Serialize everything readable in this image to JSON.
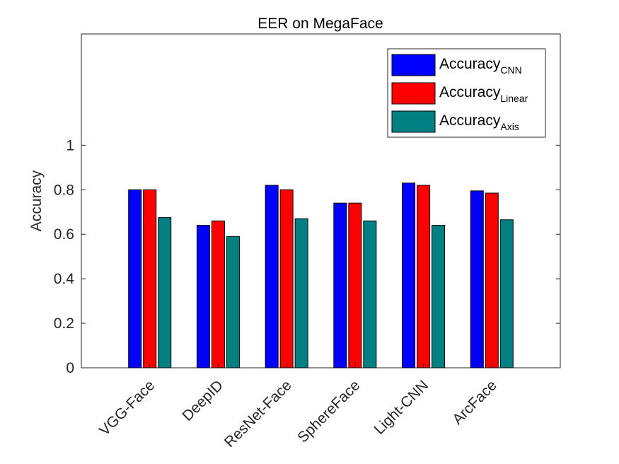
{
  "chart_data": {
    "type": "bar",
    "title": "EER on MegaFace",
    "ylabel": "Accuracy",
    "xlabel": "",
    "categories": [
      "VGG-Face",
      "DeepID",
      "ResNet-Face",
      "SphereFace",
      "Light-CNN",
      "ArcFace"
    ],
    "series": [
      {
        "name": "Accuracy",
        "name_sub": "CNN",
        "color": "#0000ff",
        "values": [
          0.8,
          0.64,
          0.82,
          0.74,
          0.83,
          0.795
        ]
      },
      {
        "name": "Accuracy",
        "name_sub": "Linear",
        "color": "#ff0000",
        "values": [
          0.8,
          0.66,
          0.8,
          0.74,
          0.82,
          0.785
        ]
      },
      {
        "name": "Accuracy",
        "name_sub": "Axis",
        "color": "#008080",
        "values": [
          0.675,
          0.59,
          0.67,
          0.66,
          0.64,
          0.665
        ]
      }
    ],
    "ylim": [
      0,
      1.5
    ],
    "yticks": [
      0,
      0.2,
      0.4,
      0.6,
      0.8,
      1
    ],
    "ytick_labels": [
      "0",
      "0.2",
      "0.4",
      "0.6",
      "0.8",
      "1"
    ],
    "legend_position": "top-right",
    "grid": false
  }
}
